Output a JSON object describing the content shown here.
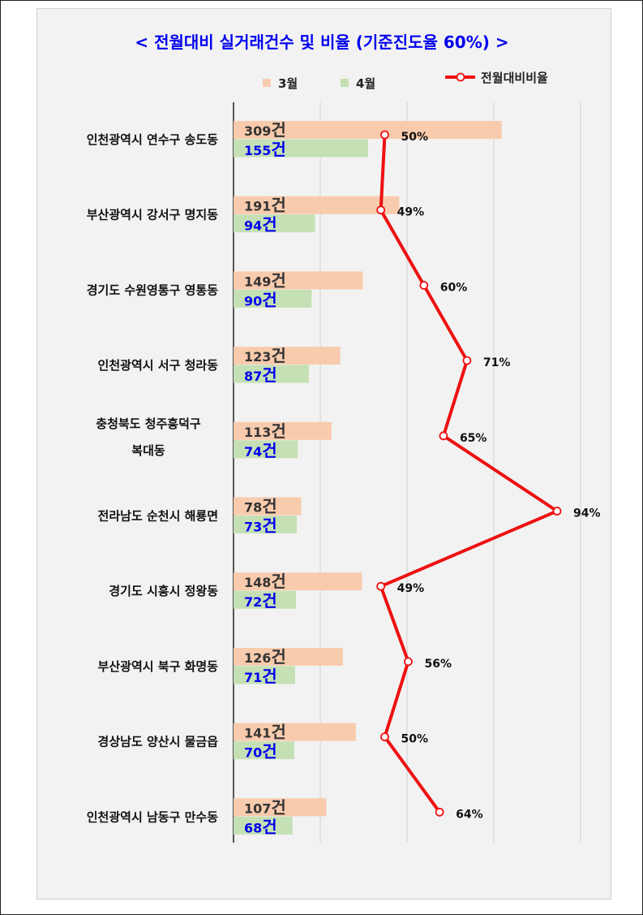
{
  "chart_data": {
    "type": "bar",
    "title": "< 전월대비 실거래건수 및 비율 (기준진도율 60%) >",
    "unit": "건",
    "categories": [
      [
        "인천광역시 연수구 송도동"
      ],
      [
        "부산광역시 강서구 명지동"
      ],
      [
        "경기도 수원영통구 영통동"
      ],
      [
        "인천광역시 서구 청라동"
      ],
      [
        "충청북도 청주흥덕구",
        "복대동"
      ],
      [
        "전라남도 순천시 해룡면"
      ],
      [
        "경기도 시흥시 정왕동"
      ],
      [
        "부산광역시 북구 화명동"
      ],
      [
        "경상남도 양산시 물금읍"
      ],
      [
        "인천광역시 남동구 만수동"
      ]
    ],
    "series": [
      {
        "name": "3월",
        "color": "#f8cbad",
        "values": [
          309,
          191,
          149,
          123,
          113,
          78,
          148,
          126,
          141,
          107
        ]
      },
      {
        "name": "4월",
        "color": "#c5e0b4",
        "values": [
          155,
          94,
          90,
          87,
          74,
          73,
          72,
          71,
          70,
          68
        ]
      }
    ],
    "line": {
      "name": "전월대비비율",
      "color": "#ee1111",
      "values": [
        50,
        49,
        60,
        71,
        65,
        94,
        49,
        56,
        50,
        64
      ],
      "labels": [
        "50%",
        "49%",
        "60%",
        "71%",
        "65%",
        "94%",
        "49%",
        "56%",
        "50%",
        "64%"
      ]
    },
    "legend_position": "top",
    "grid": true
  }
}
